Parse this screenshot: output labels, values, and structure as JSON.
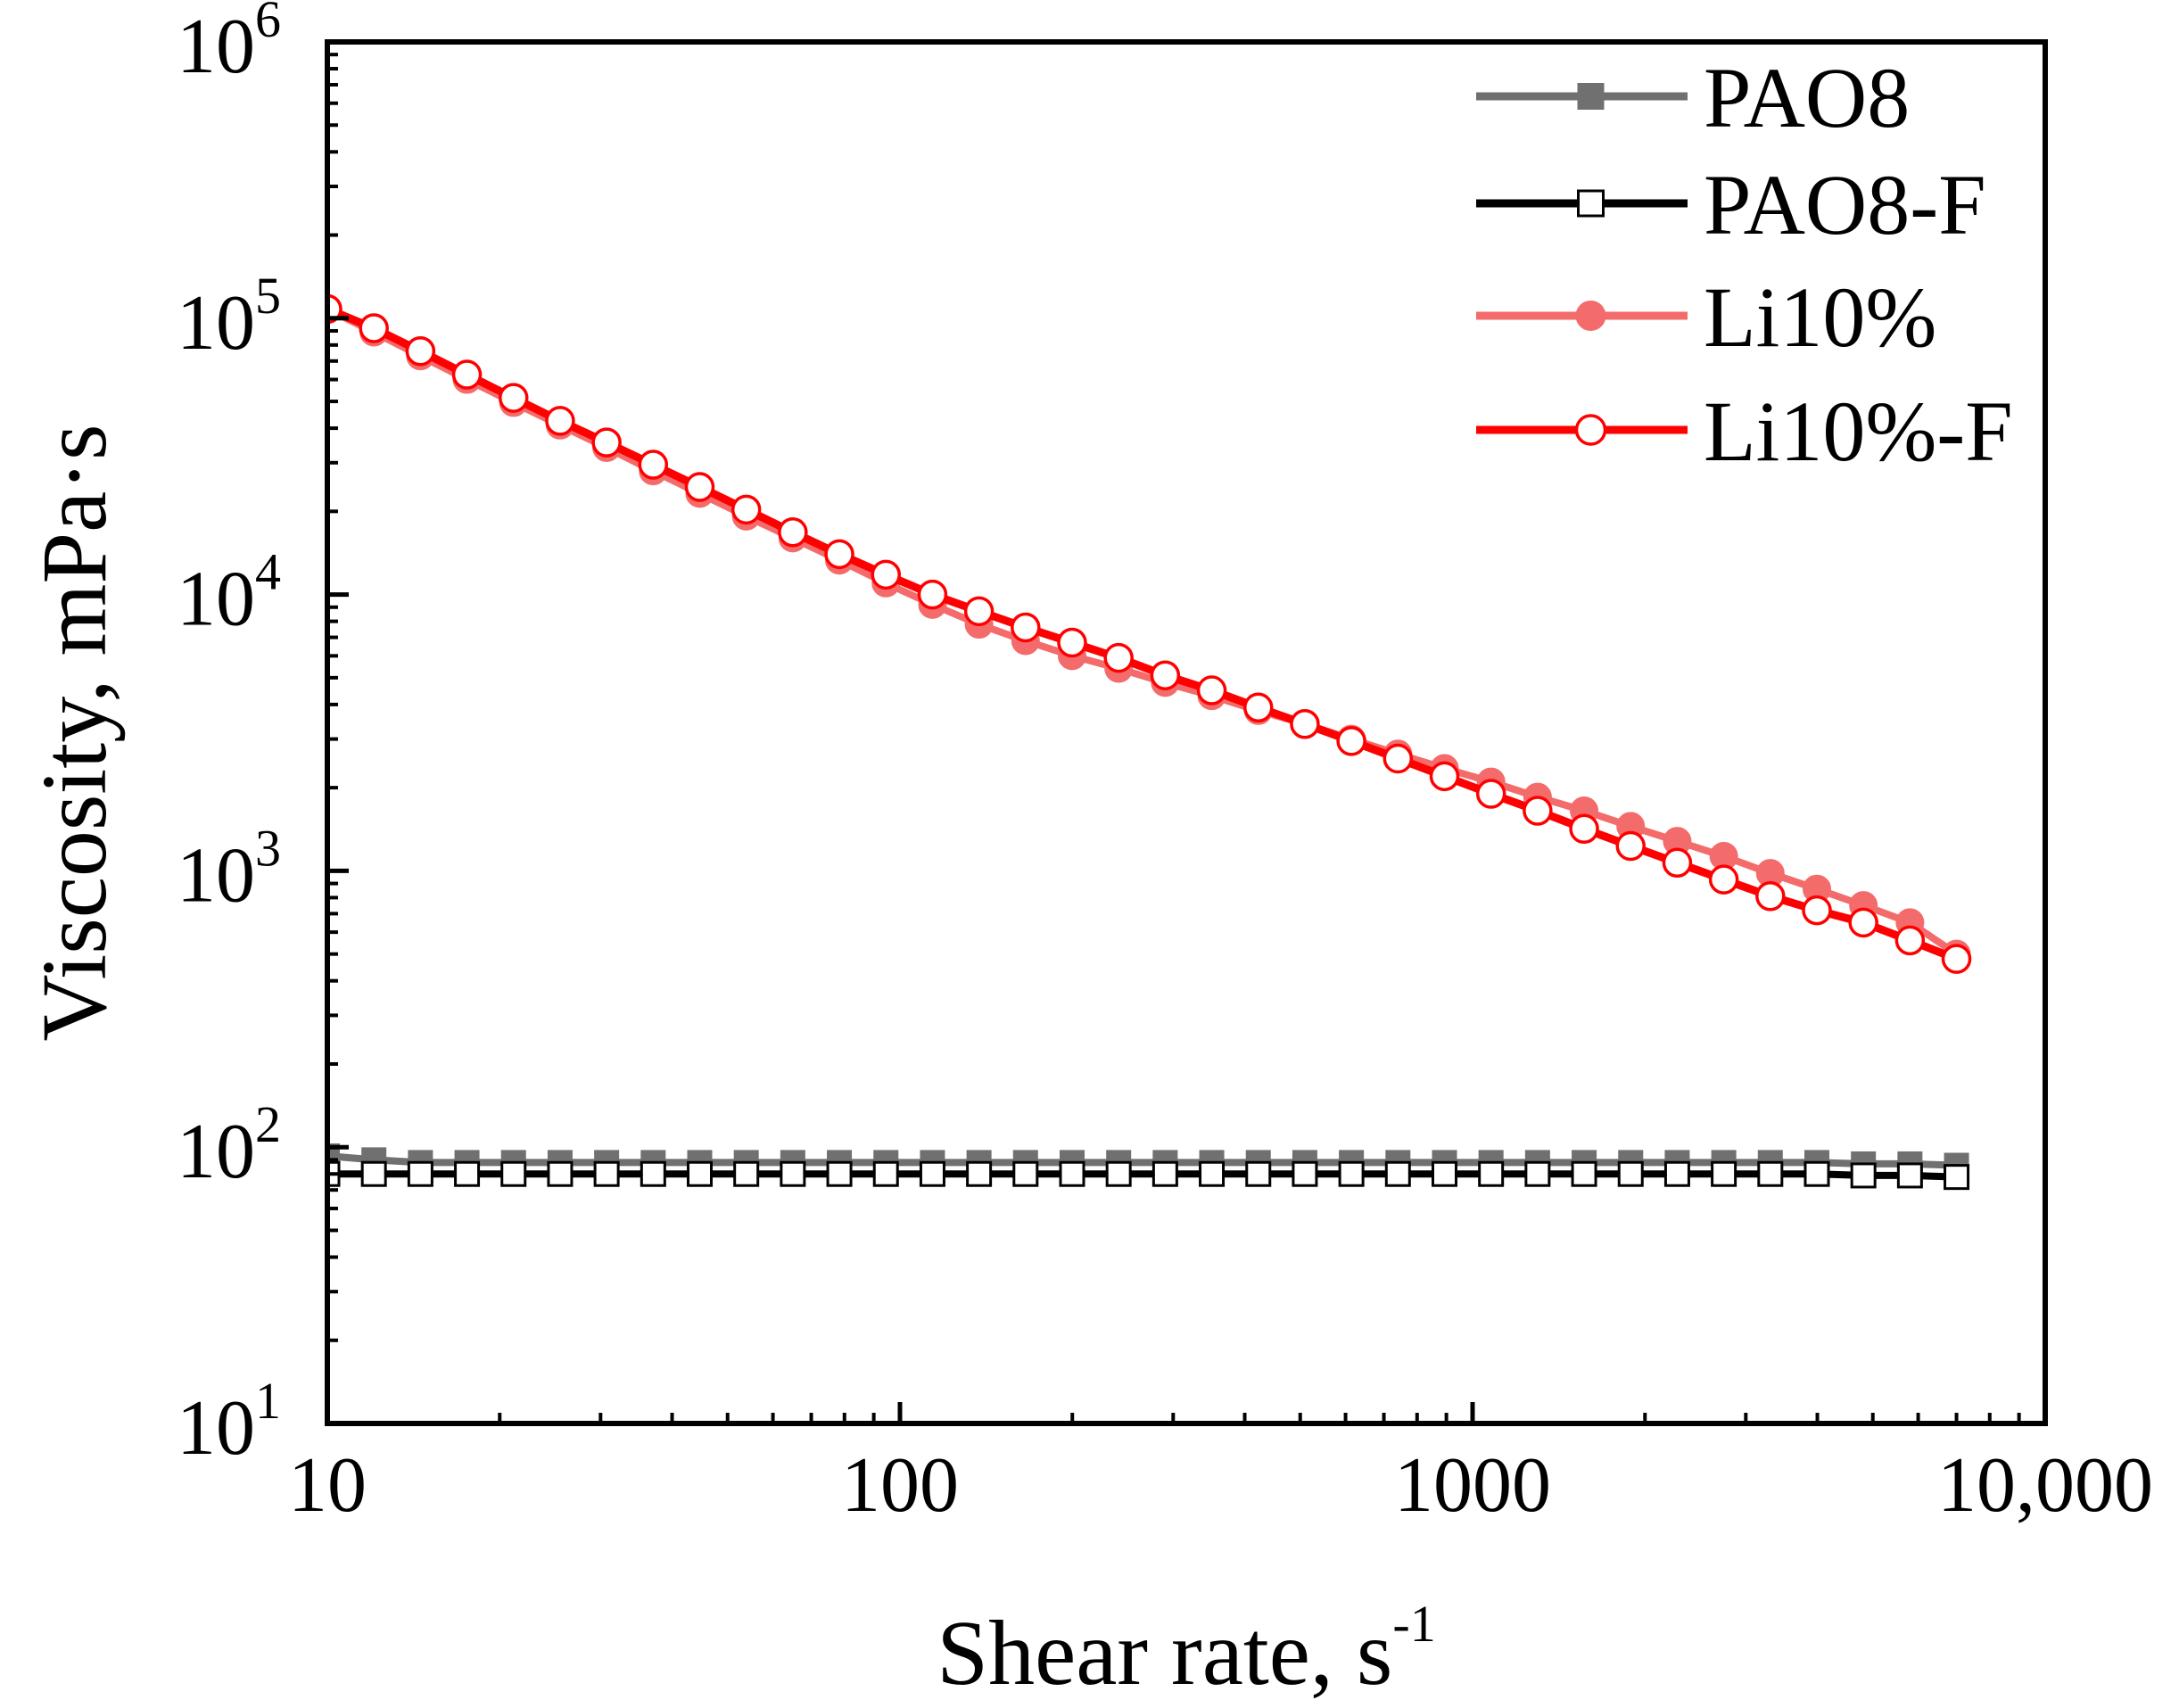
{
  "chart_data": {
    "type": "line",
    "x_scale": "log",
    "y_scale": "log",
    "xlim": [
      10,
      10000
    ],
    "ylim": [
      10,
      1000000
    ],
    "xlabel": "Shear rate, s",
    "xlabel_sup": "-1",
    "ylabel": "Viscosity, mPa·s",
    "x_ticks": [
      {
        "value": 10,
        "label": "10"
      },
      {
        "value": 100,
        "label": "100"
      },
      {
        "value": 1000,
        "label": "1000"
      },
      {
        "value": 10000,
        "label": "10,000"
      }
    ],
    "y_ticks": [
      {
        "value": 10,
        "base": "10",
        "exp": "1"
      },
      {
        "value": 100,
        "base": "10",
        "exp": "2"
      },
      {
        "value": 1000,
        "base": "10",
        "exp": "3"
      },
      {
        "value": 10000,
        "base": "10",
        "exp": "4"
      },
      {
        "value": 100000,
        "base": "10",
        "exp": "5"
      },
      {
        "value": 1000000,
        "base": "10",
        "exp": "6"
      }
    ],
    "legend_position": "top-right",
    "series": [
      {
        "name": "PAO8",
        "color": "#707070",
        "marker": "filled-square",
        "x_start": 10,
        "x_end": 7000,
        "n_points": 36,
        "values": [
          93,
          90,
          88,
          88,
          88,
          88,
          88,
          88,
          88,
          88,
          88,
          88,
          88,
          88,
          88,
          88,
          88,
          88,
          88,
          88,
          88,
          88,
          88,
          88,
          88,
          88,
          88,
          88,
          88,
          88,
          88,
          88,
          88,
          87,
          87,
          86
        ]
      },
      {
        "name": "PAO8-F",
        "color": "#000000",
        "marker": "open-square",
        "x_start": 10,
        "x_end": 7000,
        "n_points": 36,
        "values": [
          80,
          80,
          80,
          80,
          80,
          80,
          80,
          80,
          80,
          80,
          80,
          80,
          80,
          80,
          80,
          80,
          80,
          80,
          80,
          80,
          80,
          80,
          80,
          80,
          80,
          80,
          80,
          80,
          80,
          80,
          80,
          80,
          80,
          79,
          79,
          78
        ]
      },
      {
        "name": "Li10%",
        "color": "#f46b6b",
        "marker": "filled-circle",
        "x_start": 10,
        "x_end": 7000,
        "n_points": 36,
        "values": [
          108000,
          89000,
          73000,
          60000,
          49500,
          41000,
          34000,
          28000,
          23200,
          19200,
          16000,
          13300,
          11000,
          9200,
          7800,
          6800,
          6000,
          5400,
          4800,
          4300,
          3800,
          3400,
          3000,
          2650,
          2350,
          2100,
          1850,
          1650,
          1450,
          1280,
          1130,
          980,
          860,
          750,
          650,
          500
        ]
      },
      {
        "name": "Li10%-F",
        "color": "#ff0000",
        "marker": "open-circle",
        "x_start": 10,
        "x_end": 7000,
        "n_points": 36,
        "values": [
          108000,
          92000,
          76000,
          62500,
          51500,
          42500,
          35500,
          29500,
          24500,
          20300,
          16800,
          14000,
          11800,
          10000,
          8700,
          7600,
          6700,
          5900,
          5100,
          4500,
          3900,
          3400,
          2950,
          2550,
          2200,
          1900,
          1650,
          1420,
          1230,
          1070,
          930,
          810,
          720,
          650,
          560,
          480
        ]
      }
    ]
  }
}
